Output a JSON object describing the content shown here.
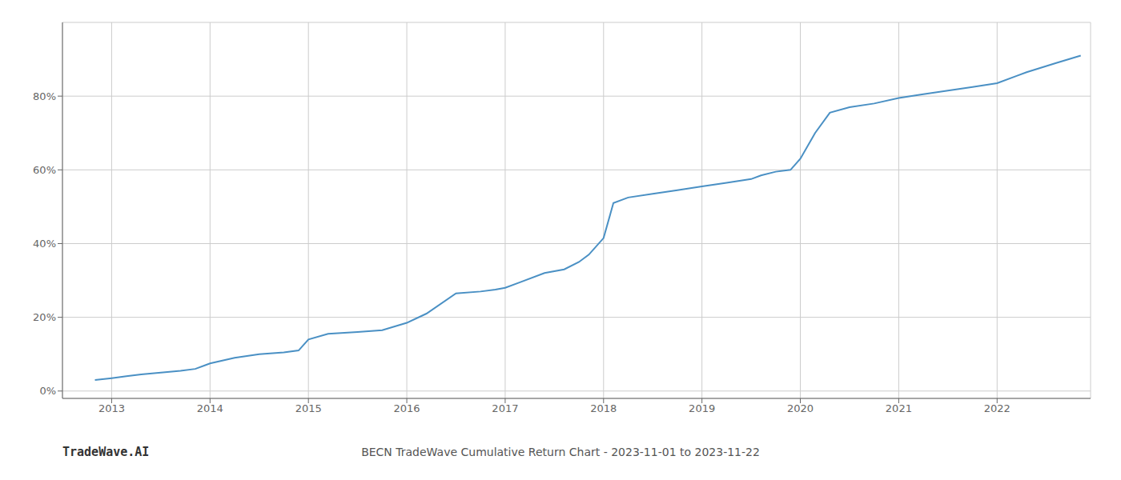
{
  "chart_data": {
    "type": "line",
    "title": "BECN TradeWave Cumulative Return Chart - 2023-11-01 to 2023-11-22",
    "annotations": [
      "TradeWave.AI"
    ],
    "x": [
      2012.83,
      2013.0,
      2013.15,
      2013.3,
      2013.5,
      2013.7,
      2013.85,
      2014.0,
      2014.25,
      2014.5,
      2014.75,
      2014.9,
      2015.0,
      2015.2,
      2015.5,
      2015.75,
      2016.0,
      2016.2,
      2016.5,
      2016.75,
      2016.9,
      2017.0,
      2017.15,
      2017.4,
      2017.6,
      2017.75,
      2017.85,
      2018.0,
      2018.1,
      2018.25,
      2018.5,
      2018.75,
      2019.0,
      2019.25,
      2019.5,
      2019.6,
      2019.75,
      2019.9,
      2020.0,
      2020.15,
      2020.3,
      2020.5,
      2020.75,
      2021.0,
      2021.25,
      2021.5,
      2021.75,
      2022.0,
      2022.3,
      2022.6,
      2022.85
    ],
    "values": [
      0.03,
      0.035,
      0.04,
      0.045,
      0.05,
      0.055,
      0.06,
      0.075,
      0.09,
      0.1,
      0.105,
      0.11,
      0.14,
      0.155,
      0.16,
      0.165,
      0.185,
      0.21,
      0.265,
      0.27,
      0.275,
      0.28,
      0.295,
      0.32,
      0.33,
      0.35,
      0.37,
      0.415,
      0.51,
      0.525,
      0.535,
      0.545,
      0.555,
      0.565,
      0.575,
      0.585,
      0.595,
      0.6,
      0.63,
      0.7,
      0.755,
      0.77,
      0.78,
      0.795,
      0.805,
      0.815,
      0.825,
      0.835,
      0.865,
      0.89,
      0.91
    ],
    "color": "#4a90c4",
    "xlim": [
      2012.5,
      2022.95
    ],
    "xticks": [
      2013,
      2014,
      2015,
      2016,
      2017,
      2018,
      2019,
      2020,
      2021,
      2022
    ],
    "ylim": [
      -0.02,
      1.0
    ],
    "yticks": [
      {
        "value": 0.0,
        "label": "0%"
      },
      {
        "value": 0.2,
        "label": "20%"
      },
      {
        "value": 0.4,
        "label": "40%"
      },
      {
        "value": 0.6,
        "label": "60%"
      },
      {
        "value": 0.8,
        "label": "80%"
      }
    ],
    "grid": true
  }
}
